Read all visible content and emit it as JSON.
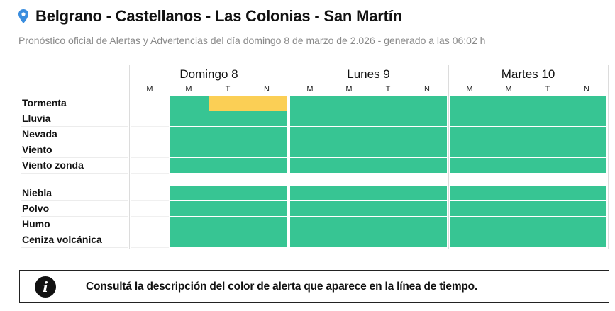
{
  "header": {
    "icon": "map-pin-icon",
    "title": "Belgrano - Castellanos - Las Colonias - San Martín",
    "subtitle": "Pronóstico oficial de Alertas y Advertencias del día domingo 8 de marzo de 2.026 - generado a las 06:02 h"
  },
  "colors": {
    "green": "#37C593",
    "yellow": "#FBCF55",
    "pin": "#3A8DDE"
  },
  "days": [
    {
      "label": "Domingo 8",
      "slots": [
        "M",
        "M",
        "T",
        "N"
      ]
    },
    {
      "label": "Lunes 9",
      "slots": [
        "M",
        "M",
        "T",
        "N"
      ]
    },
    {
      "label": "Martes 10",
      "slots": [
        "M",
        "M",
        "T",
        "N"
      ]
    }
  ],
  "phenomena": [
    {
      "label": "Tormenta",
      "levels": [
        [
          null,
          "green",
          "yellow",
          "yellow"
        ],
        [
          "green",
          "green",
          "green",
          "green"
        ],
        [
          "green",
          "green",
          "green",
          "green"
        ]
      ]
    },
    {
      "label": "Lluvia",
      "levels": [
        [
          null,
          "green",
          "green",
          "green"
        ],
        [
          "green",
          "green",
          "green",
          "green"
        ],
        [
          "green",
          "green",
          "green",
          "green"
        ]
      ]
    },
    {
      "label": "Nevada",
      "levels": [
        [
          null,
          "green",
          "green",
          "green"
        ],
        [
          "green",
          "green",
          "green",
          "green"
        ],
        [
          "green",
          "green",
          "green",
          "green"
        ]
      ]
    },
    {
      "label": "Viento",
      "levels": [
        [
          null,
          "green",
          "green",
          "green"
        ],
        [
          "green",
          "green",
          "green",
          "green"
        ],
        [
          "green",
          "green",
          "green",
          "green"
        ]
      ]
    },
    {
      "label": "Viento zonda",
      "levels": [
        [
          null,
          "green",
          "green",
          "green"
        ],
        [
          "green",
          "green",
          "green",
          "green"
        ],
        [
          "green",
          "green",
          "green",
          "green"
        ]
      ]
    },
    {
      "label": "Niebla",
      "levels": [
        [
          null,
          "green",
          "green",
          "green"
        ],
        [
          "green",
          "green",
          "green",
          "green"
        ],
        [
          "green",
          "green",
          "green",
          "green"
        ]
      ]
    },
    {
      "label": "Polvo",
      "levels": [
        [
          null,
          "green",
          "green",
          "green"
        ],
        [
          "green",
          "green",
          "green",
          "green"
        ],
        [
          "green",
          "green",
          "green",
          "green"
        ]
      ]
    },
    {
      "label": "Humo",
      "levels": [
        [
          null,
          "green",
          "green",
          "green"
        ],
        [
          "green",
          "green",
          "green",
          "green"
        ],
        [
          "green",
          "green",
          "green",
          "green"
        ]
      ]
    },
    {
      "label": "Ceniza volcánica",
      "levels": [
        [
          null,
          "green",
          "green",
          "green"
        ],
        [
          "green",
          "green",
          "green",
          "green"
        ],
        [
          "green",
          "green",
          "green",
          "green"
        ]
      ]
    }
  ],
  "info": {
    "icon": "info-icon",
    "icon_glyph": "i",
    "text": "Consultá la descripción del color de alerta que aparece en la línea de tiempo."
  }
}
